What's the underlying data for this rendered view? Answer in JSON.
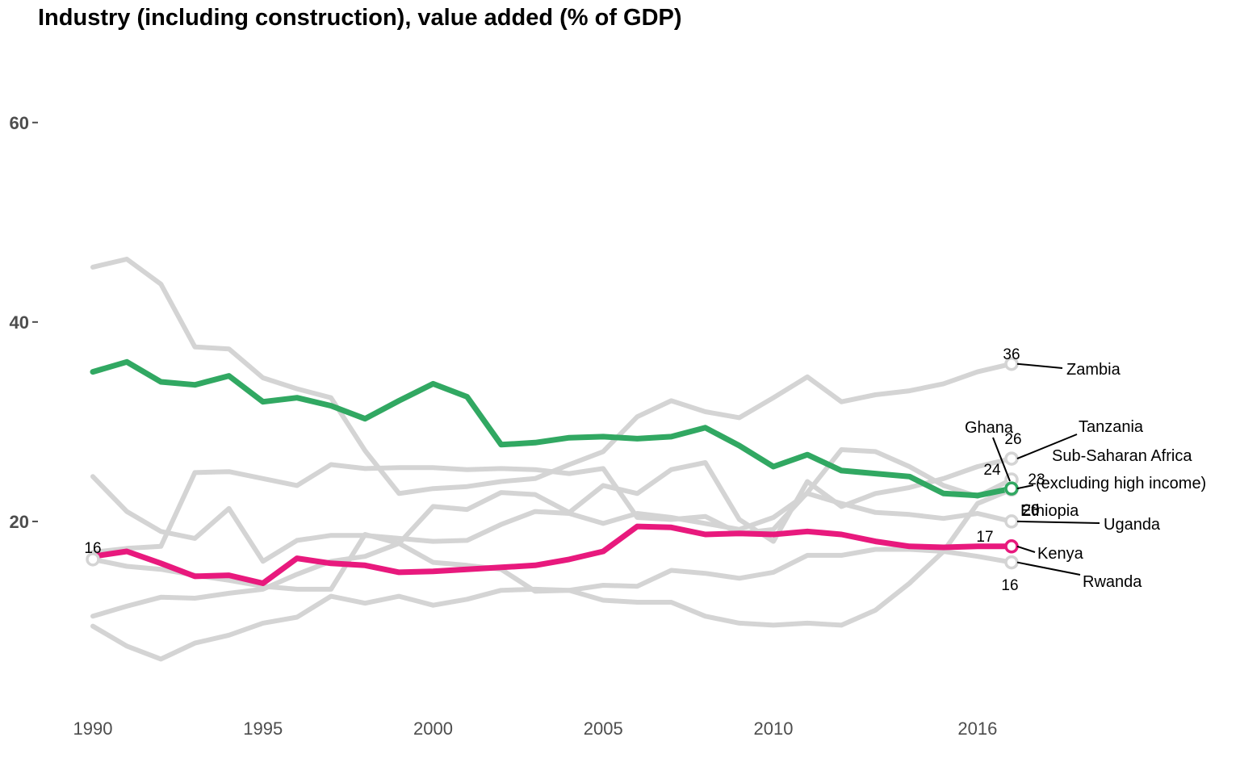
{
  "chart_data": {
    "type": "line",
    "title": "Industry (including construction), value added (% of GDP)",
    "xlabel": "",
    "ylabel": "",
    "xlim": [
      1990,
      2017
    ],
    "ylim": [
      0,
      65
    ],
    "x_ticks": [
      1990,
      1995,
      2000,
      2005,
      2010,
      2016
    ],
    "y_ticks": [
      20,
      40,
      60
    ],
    "x_tick_labels": [
      "1990",
      "1995",
      "2000",
      "2005",
      "2010",
      "2016"
    ],
    "y_tick_labels": [
      "20",
      "40",
      "60"
    ],
    "grid": false,
    "legend": "none",
    "colors": {
      "background": "#d4d4d4",
      "green": "#31a862",
      "pink": "#e8197d",
      "text": "#000000",
      "axis": "#4d4d4d"
    },
    "series": [
      {
        "name": "Sub-Saharan Africa (excluding high income)",
        "highlight": "green",
        "x": [
          1990,
          1991,
          1992,
          1993,
          1994,
          1995,
          1996,
          1997,
          1998,
          1999,
          2000,
          2001,
          2002,
          2003,
          2004,
          2005,
          2006,
          2007,
          2008,
          2009,
          2010,
          2011,
          2012,
          2013,
          2014,
          2015,
          2016,
          2017
        ],
        "values": [
          35.0,
          36.0,
          34.0,
          33.7,
          34.6,
          32.0,
          32.4,
          31.6,
          30.3,
          32.1,
          33.8,
          32.5,
          27.7,
          27.9,
          28.4,
          28.5,
          28.3,
          28.5,
          29.4,
          27.6,
          25.5,
          26.7,
          25.1,
          24.8,
          24.5,
          22.8,
          22.6,
          23.3
        ],
        "end_label": "23"
      },
      {
        "name": "Kenya",
        "highlight": "pink",
        "x": [
          1990,
          1991,
          1992,
          1993,
          1994,
          1995,
          1996,
          1997,
          1998,
          1999,
          2000,
          2001,
          2002,
          2003,
          2004,
          2005,
          2006,
          2007,
          2008,
          2009,
          2010,
          2011,
          2012,
          2013,
          2014,
          2015,
          2016,
          2017
        ],
        "values": [
          16.5,
          17.0,
          15.8,
          14.5,
          14.6,
          13.8,
          16.3,
          15.8,
          15.6,
          14.9,
          15.0,
          15.2,
          15.4,
          15.6,
          16.2,
          17.0,
          19.5,
          19.4,
          18.7,
          18.8,
          18.7,
          19.0,
          18.7,
          18.0,
          17.5,
          17.4,
          17.5,
          17.5
        ],
        "end_label": "17"
      },
      {
        "name": "Zambia",
        "x": [
          1990,
          1991,
          1992,
          1993,
          1994,
          1995,
          1996,
          1997,
          1998,
          1999,
          2000,
          2001,
          2002,
          2003,
          2004,
          2005,
          2006,
          2007,
          2008,
          2009,
          2010,
          2011,
          2012,
          2013,
          2014,
          2015,
          2016,
          2017
        ],
        "values": [
          45.5,
          46.3,
          43.8,
          37.5,
          37.3,
          34.4,
          33.3,
          32.4,
          27.1,
          22.8,
          23.3,
          23.5,
          24.0,
          24.3,
          25.7,
          27.0,
          30.5,
          32.1,
          31.0,
          30.4,
          32.4,
          34.5,
          32.0,
          32.7,
          33.1,
          33.8,
          35.0,
          35.8
        ],
        "start_label": "",
        "end_label": "36"
      },
      {
        "name": "Tanzania",
        "x": [
          1990,
          1991,
          1992,
          1993,
          1994,
          1995,
          1996,
          1997,
          1998,
          1999,
          2000,
          2001,
          2002,
          2003,
          2004,
          2005,
          2006,
          2007,
          2008,
          2009,
          2010,
          2011,
          2012,
          2013,
          2014,
          2015,
          2016,
          2017
        ],
        "values": [
          10.5,
          11.5,
          12.4,
          12.3,
          12.8,
          13.2,
          14.7,
          16.0,
          16.5,
          17.8,
          21.5,
          21.2,
          22.9,
          22.7,
          20.9,
          23.6,
          22.8,
          25.2,
          25.9,
          20.2,
          18.0,
          24.0,
          21.5,
          22.8,
          23.4,
          24.3,
          25.5,
          26.3
        ],
        "end_label": "26"
      },
      {
        "name": "Ghana",
        "x": [
          1990,
          1991,
          1992,
          1993,
          1994,
          1995,
          1996,
          1997,
          1998,
          1999,
          2000,
          2001,
          2002,
          2003,
          2004,
          2005,
          2006,
          2007,
          2008,
          2009,
          2010,
          2011,
          2012,
          2013,
          2014,
          2015,
          2016,
          2017
        ],
        "values": [
          16.9,
          17.3,
          17.5,
          24.9,
          25.0,
          24.3,
          23.6,
          25.7,
          25.3,
          25.4,
          25.4,
          25.2,
          25.3,
          25.2,
          24.8,
          25.3,
          20.4,
          20.2,
          20.5,
          18.8,
          19.2,
          22.9,
          27.2,
          27.0,
          25.5,
          23.6,
          22.5,
          24.2
        ],
        "end_label": "24"
      },
      {
        "name": "Ethiopia",
        "x": [
          1990,
          1991,
          1992,
          1993,
          1994,
          1995,
          1996,
          1997,
          1998,
          1999,
          2000,
          2001,
          2002,
          2003,
          2004,
          2005,
          2006,
          2007,
          2008,
          2009,
          2010,
          2011,
          2012,
          2013,
          2014,
          2015,
          2016,
          2017
        ],
        "values": [
          9.5,
          7.5,
          6.2,
          7.8,
          8.6,
          9.8,
          10.4,
          12.5,
          11.8,
          12.5,
          11.6,
          12.2,
          13.1,
          13.2,
          13.1,
          12.1,
          11.9,
          11.9,
          10.5,
          9.8,
          9.6,
          9.8,
          9.6,
          11.1,
          13.8,
          17.0,
          21.8,
          23.2
        ],
        "end_label": "23"
      },
      {
        "name": "Uganda",
        "x": [
          1990,
          1991,
          1992,
          1993,
          1994,
          1995,
          1996,
          1997,
          1998,
          1999,
          2000,
          2001,
          2002,
          2003,
          2004,
          2005,
          2006,
          2007,
          2008,
          2009,
          2010,
          2011,
          2012,
          2013,
          2014,
          2015,
          2016,
          2017
        ],
        "values": [
          24.5,
          21.0,
          19.0,
          18.3,
          21.3,
          16.0,
          18.1,
          18.6,
          18.6,
          18.3,
          18.0,
          18.1,
          19.7,
          21.0,
          20.8,
          19.8,
          20.8,
          20.4,
          19.8,
          19.2,
          20.4,
          22.8,
          21.8,
          20.9,
          20.7,
          20.3,
          20.8,
          20.0
        ],
        "end_label": "20"
      },
      {
        "name": "Rwanda",
        "x": [
          1990,
          1991,
          1992,
          1993,
          1994,
          1995,
          1996,
          1997,
          1998,
          1999,
          2000,
          2001,
          2002,
          2003,
          2004,
          2005,
          2006,
          2007,
          2008,
          2009,
          2010,
          2011,
          2012,
          2013,
          2014,
          2015,
          2016,
          2017
        ],
        "values": [
          16.2,
          15.5,
          15.2,
          14.6,
          14.1,
          13.5,
          13.2,
          13.2,
          18.7,
          17.8,
          15.9,
          15.6,
          15.2,
          13.0,
          13.1,
          13.6,
          13.5,
          15.1,
          14.8,
          14.3,
          14.9,
          16.6,
          16.6,
          17.2,
          17.2,
          17.0,
          16.5,
          15.9
        ],
        "start_label": "16",
        "end_label": "16"
      }
    ],
    "annotations": [
      {
        "series": "Zambia",
        "label": "Zambia"
      },
      {
        "series": "Tanzania",
        "label": "Tanzania"
      },
      {
        "series": "Ghana",
        "label": "Ghana"
      },
      {
        "series": "Sub-Saharan Africa (excluding high income)",
        "label": "Sub-Saharan Africa",
        "label2": "(excluding high income)"
      },
      {
        "series": "Ethiopia",
        "label": "Ethiopia"
      },
      {
        "series": "Uganda",
        "label": "Uganda"
      },
      {
        "series": "Kenya",
        "label": "Kenya"
      },
      {
        "series": "Rwanda",
        "label": "Rwanda"
      }
    ]
  }
}
